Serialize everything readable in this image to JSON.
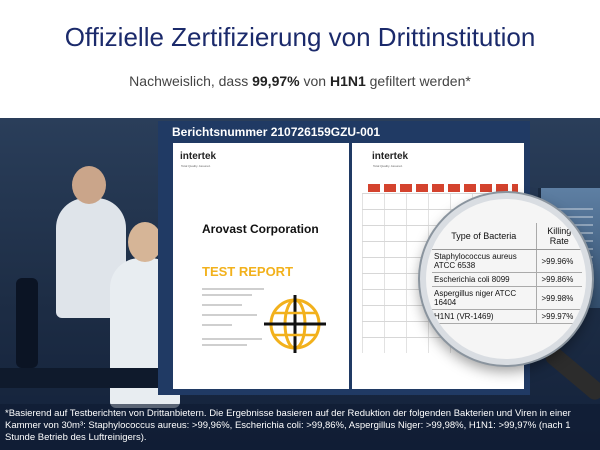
{
  "header": {
    "title": "Offizielle Zertifizierung von Drittinstitution",
    "subtitle_pre": "Nachweislich, dass ",
    "subtitle_pct": "99,97%",
    "subtitle_mid": " von ",
    "subtitle_virus": "H1N1",
    "subtitle_post": " gefiltert werden*"
  },
  "certificate": {
    "report_number": "Berichtsnummer 210726159GZU-001",
    "logo": "intertek",
    "logo_tagline": "Total Quality. Assured.",
    "company": "Arovast Corporation",
    "doc_title": "TEST REPORT"
  },
  "magnifier": {
    "col_bacteria": "Type of Bacteria",
    "col_rate": "Killing Rate",
    "rows": [
      {
        "name": "Staphylococcus aureus ATCC 6538",
        "rate": ">99.96%"
      },
      {
        "name": "Escherichia coli 8099",
        "rate": ">99.86%"
      },
      {
        "name": "Aspergillus niger ATCC 16404",
        "rate": ">99.98%"
      },
      {
        "name": "H1N1 (VR-1469)",
        "rate": ">99.97%"
      }
    ]
  },
  "footnote": "*Basierend auf Testberichten von Drittanbietern. Die Ergebnisse basieren auf der Reduktion der folgenden Bakterien und Viren in einer Kammer von 30m³: Staphylococcus aureus: >99,96%, Escherichia coli: >99,86%, Aspergillus Niger: >99,98%, H1N1: >99,97% (nach 1 Stunde Betrieb des Luftreinigers).",
  "colors": {
    "title": "#1b2a6b",
    "frame": "#203a64",
    "accent": "#f2b11c"
  }
}
